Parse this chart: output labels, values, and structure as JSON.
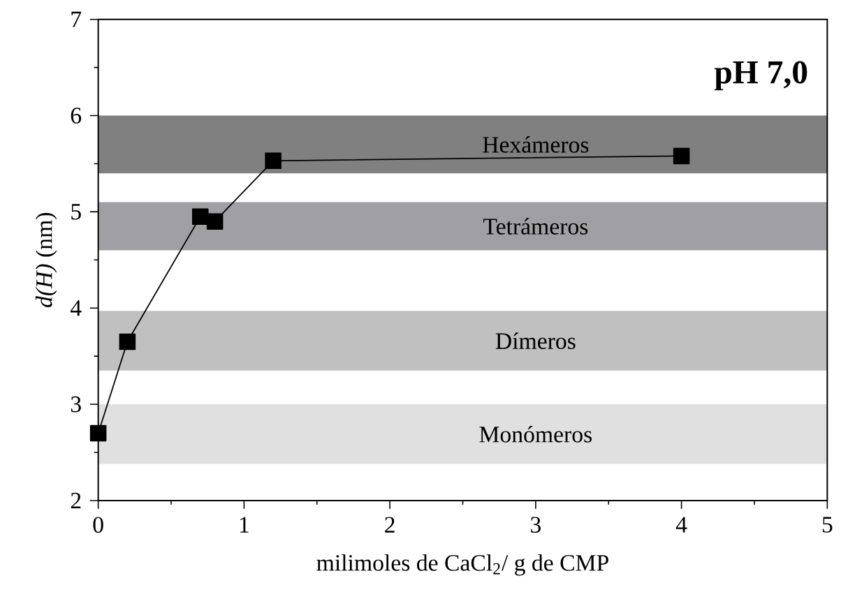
{
  "chart_data": {
    "type": "line",
    "xlabel": "milimoles de CaCl$_{2}$/ g de CMP",
    "ylabel": "*d(H)* (nm)",
    "x": [
      0,
      0.2,
      0.7,
      0.8,
      1.2,
      4
    ],
    "series": [
      {
        "color": "#000000",
        "values": [
          2.7,
          3.65,
          4.95,
          4.9,
          5.53,
          5.58
        ]
      }
    ],
    "marker": "square",
    "line_style": "solid",
    "xlim": [
      0,
      5
    ],
    "ylim": [
      2,
      7
    ],
    "xticks": [
      0,
      1,
      2,
      3,
      4,
      5
    ],
    "yticks": [
      2,
      3,
      4,
      5,
      6,
      7
    ],
    "bands": [
      {
        "axis": "y",
        "from": 5.4,
        "to": 6.0,
        "label": "Hexámeros",
        "color": "#808080"
      },
      {
        "axis": "y",
        "from": 4.6,
        "to": 5.1,
        "label": "Tetrámeros",
        "color": "#a0a0a4"
      },
      {
        "axis": "y",
        "from": 3.35,
        "to": 3.97,
        "label": "Dímeros",
        "color": "#c0c0c0"
      },
      {
        "axis": "y",
        "from": 2.38,
        "to": 3.0,
        "label": "Monómeros",
        "color": "#e0e0e0"
      }
    ],
    "annotations": [
      "pH 7,0"
    ]
  }
}
